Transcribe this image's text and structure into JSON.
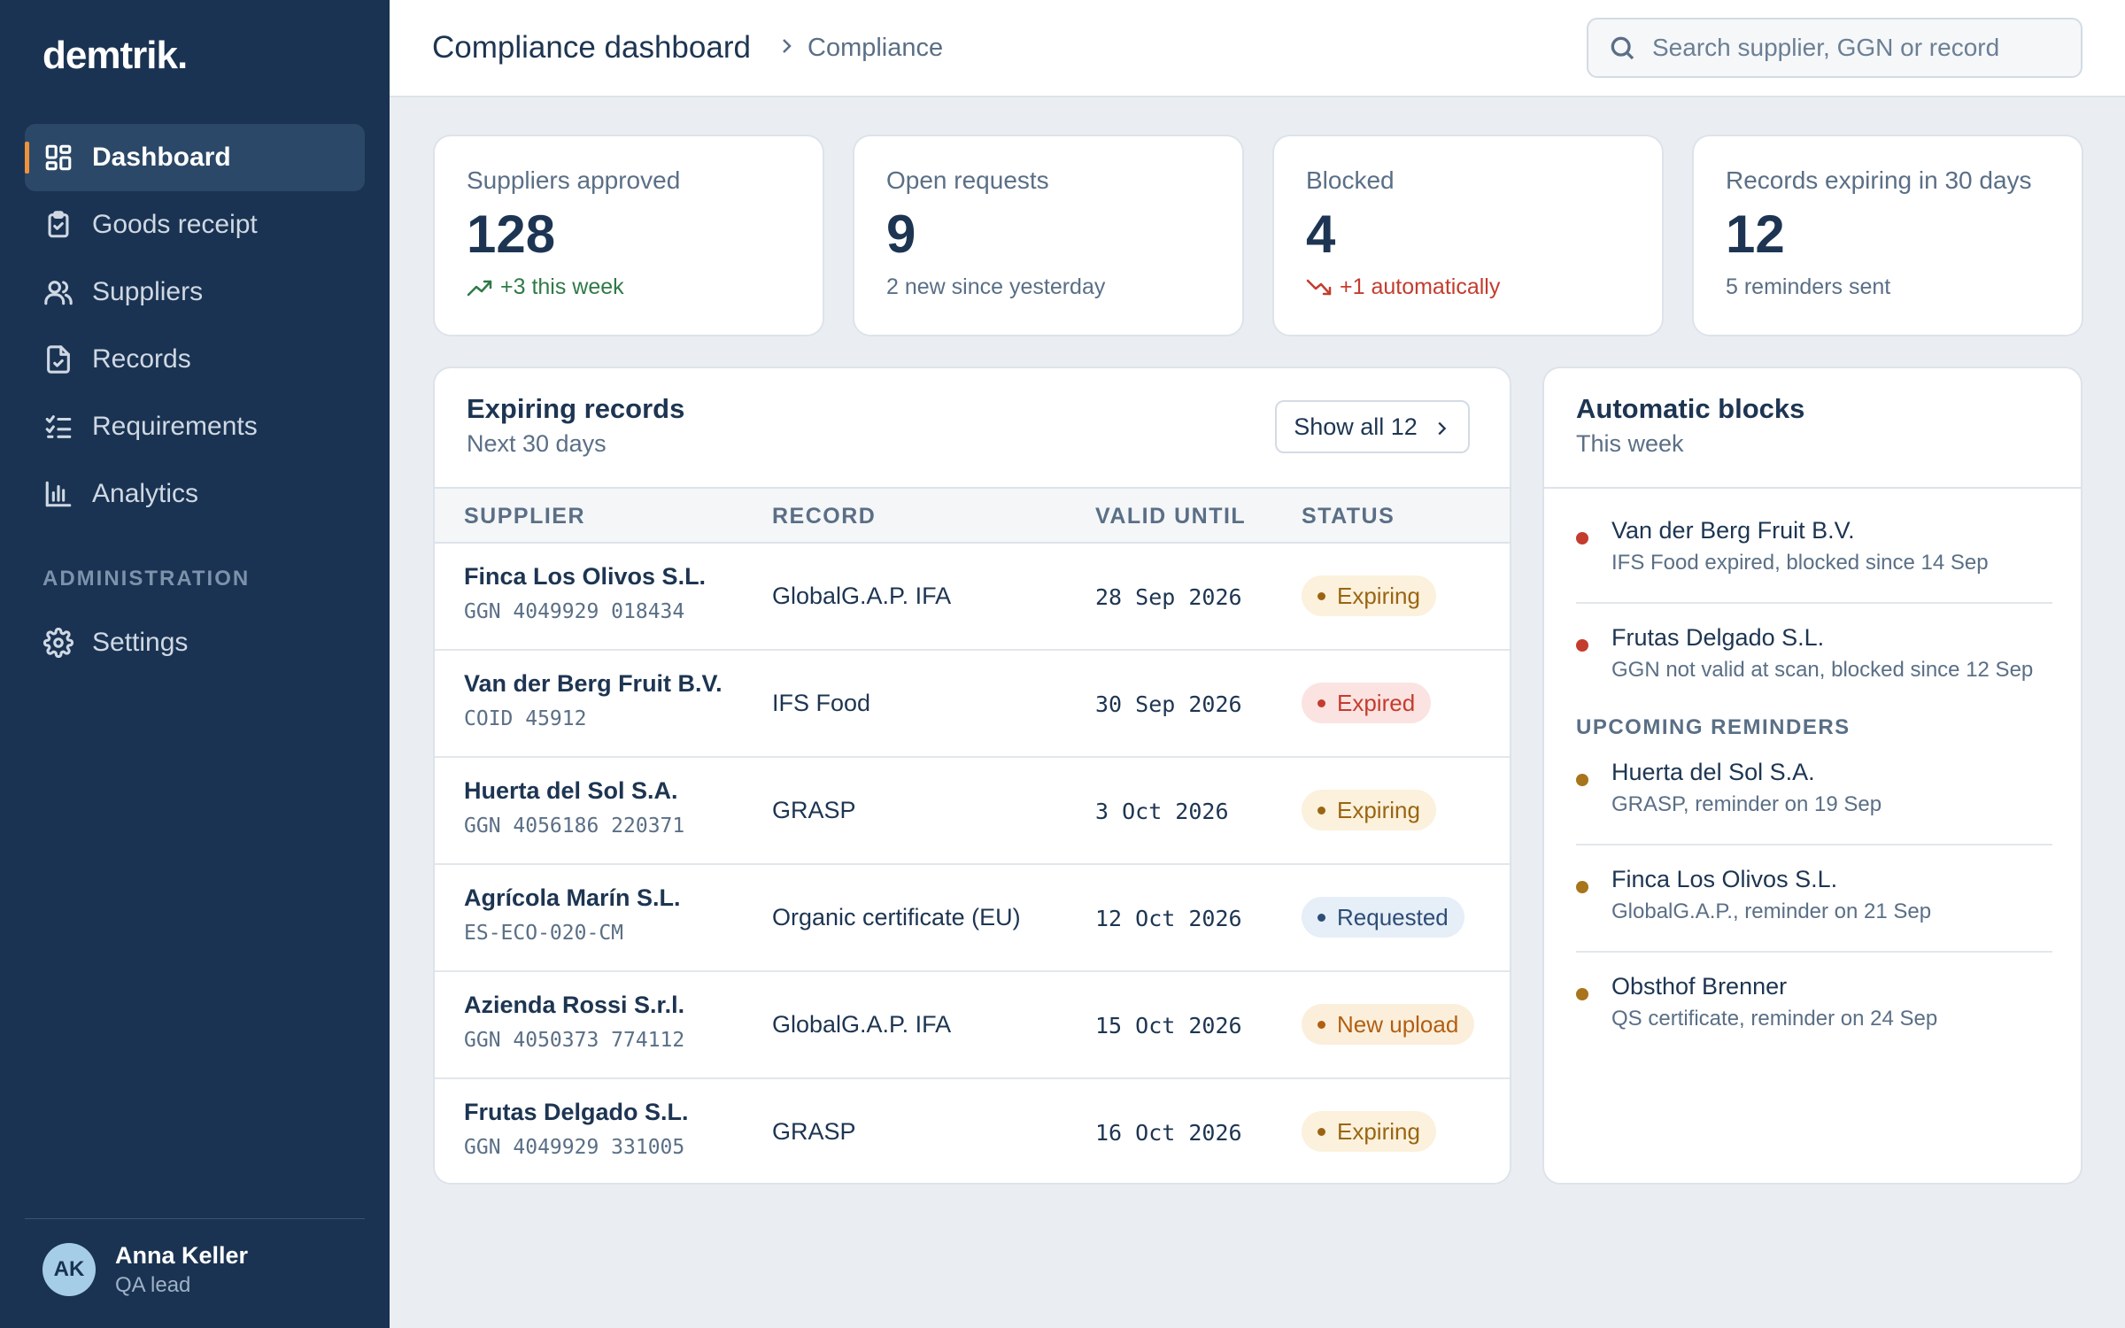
{
  "brand": {
    "logo": "demtrik.",
    "accent": "#f0923a",
    "sidebar_bg": "#1a3352"
  },
  "sidebar": {
    "items": [
      {
        "label": "Dashboard",
        "icon": "dashboard-icon",
        "active": true
      },
      {
        "label": "Goods receipt",
        "icon": "clipboard-check-icon"
      },
      {
        "label": "Suppliers",
        "icon": "users-icon"
      },
      {
        "label": "Records",
        "icon": "file-check-icon"
      },
      {
        "label": "Requirements",
        "icon": "checklist-icon"
      },
      {
        "label": "Analytics",
        "icon": "bar-chart-icon"
      }
    ],
    "section_label": "ADMINISTRATION",
    "admin_items": [
      {
        "label": "Settings",
        "icon": "gear-icon"
      }
    ],
    "user": {
      "initials": "AK",
      "name": "Anna Keller",
      "role": "QA lead"
    }
  },
  "header": {
    "title": "Compliance dashboard",
    "breadcrumb": "Compliance",
    "search_placeholder": "Search supplier, GGN or record"
  },
  "stats": [
    {
      "label": "Suppliers approved",
      "value": "128",
      "sub": "+3 this week",
      "trend": "up",
      "color": "#2f7a47"
    },
    {
      "label": "Open requests",
      "value": "9",
      "sub": "2 new since yesterday"
    },
    {
      "label": "Blocked",
      "value": "4",
      "sub": "+1 automatically",
      "trend": "down",
      "color": "#c43c2e"
    },
    {
      "label": "Records expiring in 30 days",
      "value": "12",
      "sub": "5 reminders sent"
    }
  ],
  "expiring": {
    "title": "Expiring records",
    "subtitle": "Next 30 days",
    "show_all": "Show all 12",
    "columns": [
      "SUPPLIER",
      "RECORD",
      "VALID UNTIL",
      "STATUS"
    ],
    "rows": [
      {
        "supplier": "Finca Los Olivos S.L.",
        "id": "GGN 4049929 018434",
        "record": "GlobalG.A.P. IFA",
        "valid_until": "28 Sep 2026",
        "status": "Expiring",
        "status_type": "expiring"
      },
      {
        "supplier": "Van der Berg Fruit B.V.",
        "id": "COID 45912",
        "record": "IFS Food",
        "valid_until": "30 Sep 2026",
        "status": "Expired",
        "status_type": "expired"
      },
      {
        "supplier": "Huerta del Sol S.A.",
        "id": "GGN 4056186 220371",
        "record": "GRASP",
        "valid_until": "3 Oct 2026",
        "status": "Expiring",
        "status_type": "expiring"
      },
      {
        "supplier": "Agrícola Marín S.L.",
        "id": "ES-ECO-020-CM",
        "record": "Organic certificate (EU)",
        "valid_until": "12 Oct 2026",
        "status": "Requested",
        "status_type": "requested"
      },
      {
        "supplier": "Azienda Rossi S.r.l.",
        "id": "GGN 4050373 774112",
        "record": "GlobalG.A.P. IFA",
        "valid_until": "15 Oct 2026",
        "status": "New upload",
        "status_type": "newupload"
      },
      {
        "supplier": "Frutas Delgado S.L.",
        "id": "GGN 4049929 331005",
        "record": "GRASP",
        "valid_until": "16 Oct 2026",
        "status": "Expiring",
        "status_type": "expiring"
      }
    ]
  },
  "blocks": {
    "title": "Automatic blocks",
    "subtitle": "This week",
    "items": [
      {
        "name": "Van der Berg Fruit B.V.",
        "desc": "IFS Food expired, blocked since 14 Sep",
        "color": "#c43c2e"
      },
      {
        "name": "Frutas Delgado S.L.",
        "desc": "GGN not valid at scan, blocked since 12 Sep",
        "color": "#c43c2e"
      }
    ],
    "reminders_label": "UPCOMING REMINDERS",
    "reminders": [
      {
        "name": "Huerta del Sol S.A.",
        "desc": "GRASP, reminder on 19 Sep",
        "color": "#a8741c"
      },
      {
        "name": "Finca Los Olivos S.L.",
        "desc": "GlobalG.A.P., reminder on 21 Sep",
        "color": "#a8741c"
      },
      {
        "name": "Obsthof Brenner",
        "desc": "QS certificate, reminder on 24 Sep",
        "color": "#a8741c"
      }
    ]
  }
}
